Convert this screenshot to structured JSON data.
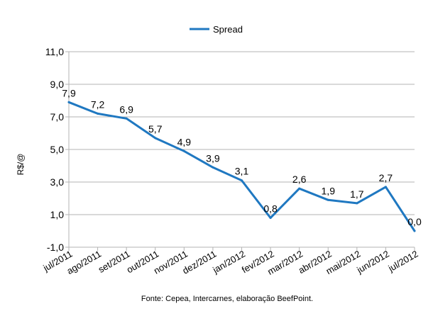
{
  "chart_data": {
    "type": "line",
    "title": "",
    "xlabel": "",
    "ylabel": "R$/@",
    "categories": [
      "jul/2011",
      "ago/2011",
      "set/2011",
      "out/2011",
      "nov/2011",
      "dez/2011",
      "jan/2012",
      "fev/2012",
      "mar/2012",
      "abr/2012",
      "mai/2012",
      "jun/2012",
      "jul/2012"
    ],
    "series": [
      {
        "name": "Spread",
        "values": [
          7.9,
          7.2,
          6.9,
          5.7,
          4.9,
          3.9,
          3.1,
          0.8,
          2.6,
          1.9,
          1.7,
          2.7,
          0.0
        ],
        "labels": [
          "7,9",
          "7,2",
          "6,9",
          "5,7",
          "4,9",
          "3,9",
          "3,1",
          "0,8",
          "2,6",
          "1,9",
          "1,7",
          "2,7",
          "0,0"
        ],
        "color": "#1f78c1"
      }
    ],
    "ylim": [
      -1.0,
      11.0
    ],
    "yticks": [
      -1.0,
      1.0,
      3.0,
      5.0,
      7.0,
      9.0,
      11.0
    ],
    "ytick_labels": [
      "-1,0",
      "1,0",
      "3,0",
      "5,0",
      "7,0",
      "9,0",
      "11,0"
    ],
    "grid": true,
    "legend_position": "top-center",
    "source_note": "Fonte: Cepea, Intercarnes, elaboração BeefPoint."
  }
}
